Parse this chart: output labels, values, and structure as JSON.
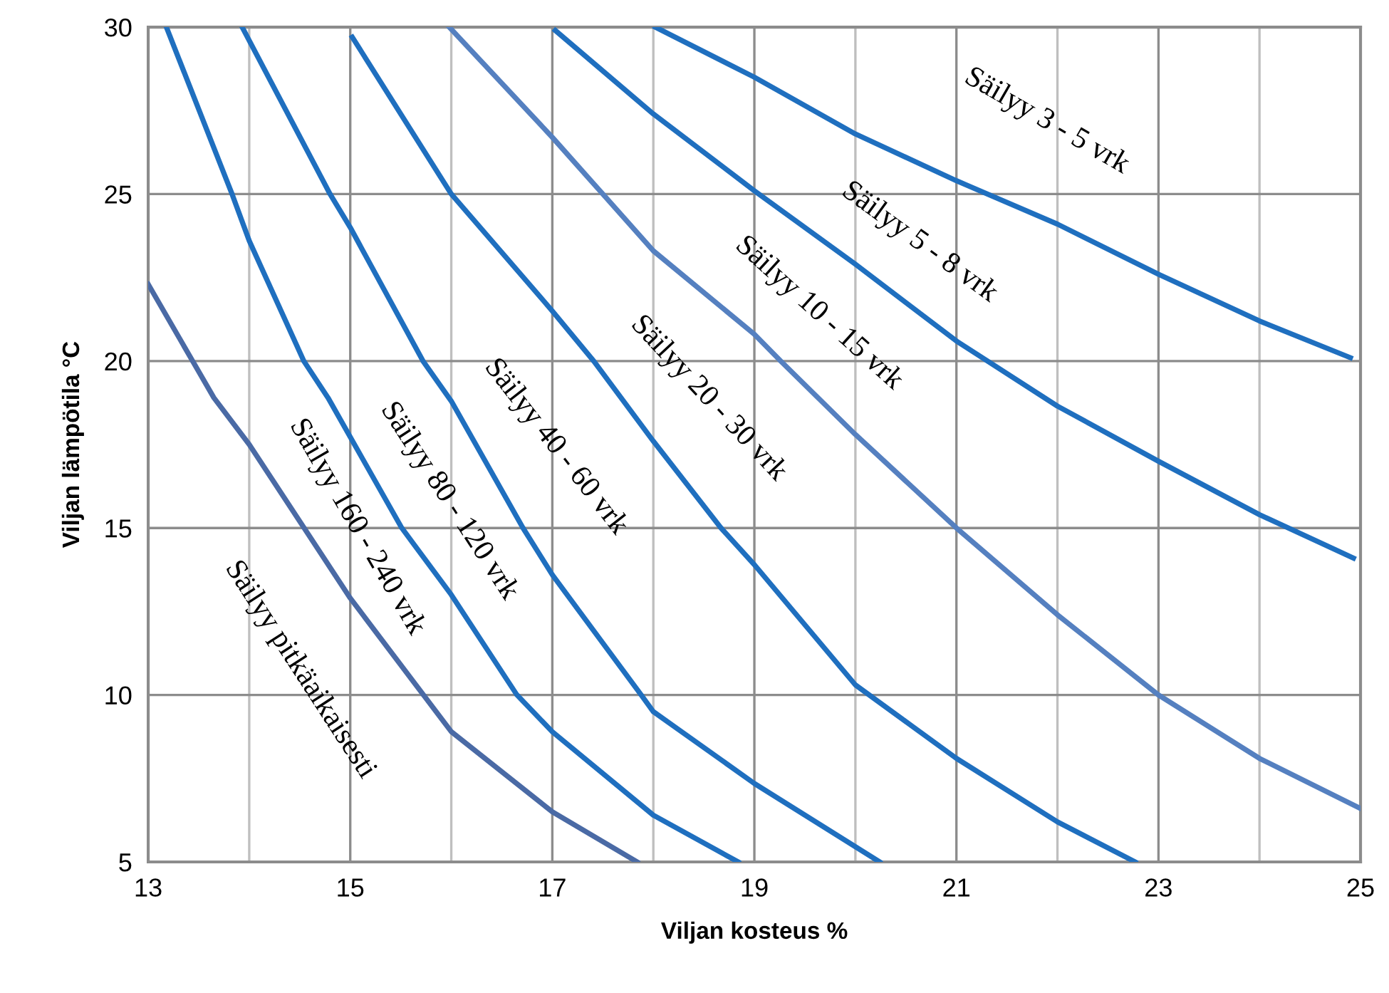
{
  "chart_data": {
    "type": "line",
    "xlabel": "Viljan kosteus %",
    "ylabel": "Viljan lämpötila °C",
    "xlim": [
      13,
      25
    ],
    "ylim": [
      5,
      30
    ],
    "xticks": [
      13,
      {
        "value": 14,
        "label": null
      },
      15,
      {
        "value": 16,
        "label": null
      },
      17,
      {
        "value": 18,
        "label": null
      },
      19,
      {
        "value": 20,
        "label": null
      },
      21,
      {
        "value": 22,
        "label": null
      },
      23,
      {
        "value": 24,
        "label": null
      },
      25
    ],
    "yticks": [
      5,
      10,
      15,
      20,
      25,
      30
    ],
    "grid": true,
    "legend": false,
    "marker": "none",
    "line_style": "solid",
    "series": [
      {
        "color": "#4a6aa5",
        "x": [
          13,
          13.65,
          14,
          15,
          16,
          17,
          17.84
        ],
        "values": [
          22.3,
          18.9,
          17.5,
          12.9,
          8.9,
          6.5,
          5
        ]
      },
      {
        "color": "#1f6fbf",
        "x": [
          13.18,
          13.83,
          14,
          14.54,
          14.78,
          15.51,
          16,
          16.65,
          17,
          18,
          18.84
        ],
        "values": [
          30,
          25,
          23.6,
          20,
          18.9,
          15,
          13,
          10,
          8.9,
          6.4,
          5
        ]
      },
      {
        "color": "#1f6fbf",
        "x": [
          13.93,
          14.8,
          15,
          15.72,
          16,
          16.71,
          17,
          17.88,
          18,
          19,
          20.24
        ],
        "values": [
          30,
          25,
          24,
          20,
          18.8,
          15,
          13.6,
          10,
          9.5,
          7.35,
          5
        ]
      },
      {
        "color": "#1f6fbf",
        "x": [
          15.02,
          16,
          17,
          17.41,
          18,
          18.67,
          19,
          20,
          21,
          22,
          22.77
        ],
        "values": [
          29.7,
          25,
          21.5,
          20,
          17.6,
          15,
          13.9,
          10.3,
          8.1,
          6.2,
          5
        ]
      },
      {
        "color": "#5580c0",
        "x": [
          15.98,
          17,
          17.5,
          18,
          19,
          19.26,
          20,
          21,
          22,
          23,
          24,
          25
        ],
        "values": [
          30,
          26.7,
          25,
          23.3,
          20.8,
          20,
          17.8,
          15,
          12.4,
          10,
          8.1,
          6.6
        ]
      },
      {
        "color": "#1f6fbf",
        "x": [
          17.03,
          18,
          19,
          20,
          21,
          22,
          23,
          24,
          24.93
        ],
        "values": [
          29.9,
          27.4,
          25.1,
          22.9,
          20.6,
          18.65,
          17,
          15.4,
          14.1
        ]
      },
      {
        "color": "#1f6fbf",
        "x": [
          18.02,
          19,
          20,
          21,
          22,
          23,
          24,
          24.9
        ],
        "values": [
          30,
          28.5,
          26.8,
          25.4,
          24.1,
          22.6,
          21.2,
          20.1
        ]
      }
    ],
    "annotations": [
      "Säilyy pitkäaikaisesti",
      "Säilyy 160 - 240 vrk",
      "Säilyy 80 - 120 vrk",
      "Säilyy 40 - 60 vrk",
      "Säilyy 20 - 30 vrk",
      "Säilyy 10 - 15 vrk",
      "Säilyy 5 - 8 vrk",
      "Säilyy 3 - 5 vrk"
    ]
  }
}
